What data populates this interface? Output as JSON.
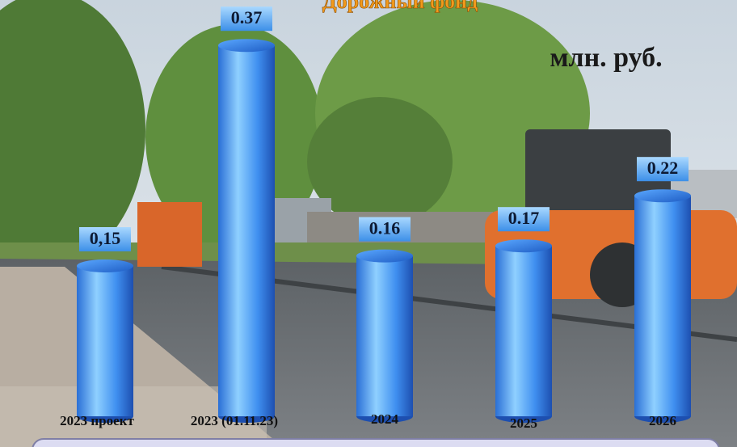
{
  "chart_data": {
    "type": "bar",
    "title": "Дорожный фонд",
    "unit_label": "млн. руб.",
    "categories": [
      "2023 проект",
      "2023 (01.11.23)",
      "2024",
      "2025",
      "2026"
    ],
    "values": [
      0.15,
      0.37,
      0.16,
      0.17,
      0.22
    ],
    "value_labels": [
      "0,15",
      "0.37",
      "0.16",
      "0.17",
      "0.22"
    ],
    "color": "#2f7fe0"
  }
}
